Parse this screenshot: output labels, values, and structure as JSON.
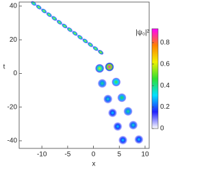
{
  "chart_data": {
    "type": "density",
    "xlabel": "x",
    "ylabel": "t",
    "colorbar_label": "|ψ₀|²",
    "xlim": [
      -14.4,
      10.8
    ],
    "ylim": [
      -44.5,
      42.4
    ],
    "xticks": [
      -10,
      -5,
      0,
      5,
      10
    ],
    "yticks": [
      -40,
      -20,
      0,
      20,
      40
    ],
    "clim": [
      0,
      0.93
    ],
    "cticks": [
      0,
      0.2,
      0.4,
      0.6,
      0.8
    ],
    "colormap": [
      "#ffffff",
      "#2020ff",
      "#00e0ff",
      "#30e030",
      "#f0f000",
      "#ff8000",
      "#ff00ff"
    ],
    "x": [
      -11.6,
      -10.6,
      -9.6,
      -8.6,
      -7.6,
      -6.6,
      -5.6,
      -4.6,
      -3.6,
      -2.6,
      -1.6,
      -0.6,
      0.4,
      1.4,
      1.2,
      3.1,
      1.7,
      4.4,
      2.8,
      5.5,
      3.7,
      6.7,
      4.7,
      7.7,
      5.7,
      8.8
    ],
    "t": [
      41.6,
      39.4,
      37.1,
      34.9,
      32.7,
      30.4,
      28.2,
      26.0,
      23.8,
      21.5,
      19.3,
      17.1,
      14.8,
      12.6,
      3.0,
      3.9,
      -5.9,
      -5.1,
      -15.2,
      -14.4,
      -23.4,
      -22.5,
      -31.5,
      -30.7,
      -39.6,
      -39.2
    ],
    "values": [
      0.55,
      0.6,
      0.6,
      0.6,
      0.6,
      0.6,
      0.6,
      0.6,
      0.6,
      0.6,
      0.6,
      0.6,
      0.6,
      0.65,
      0.6,
      0.9,
      0.4,
      0.5,
      0.35,
      0.45,
      0.3,
      0.4,
      0.3,
      0.35,
      0.3,
      0.3
    ]
  }
}
